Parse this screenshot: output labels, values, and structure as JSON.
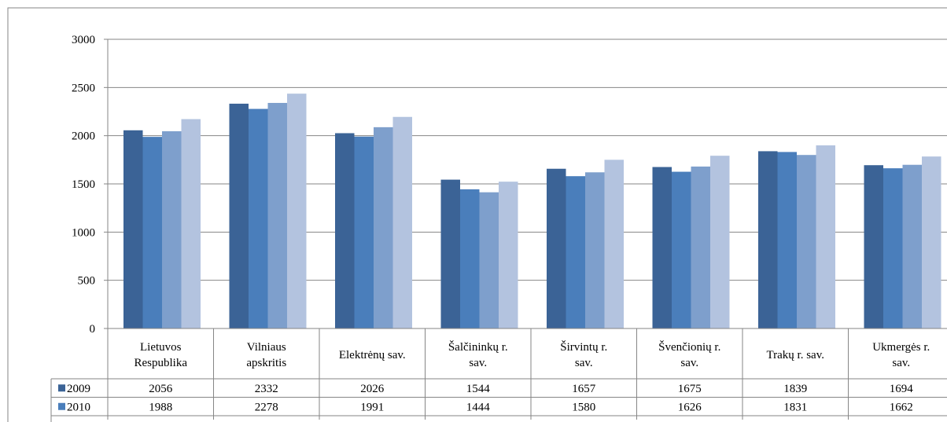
{
  "chart_data": {
    "type": "bar",
    "ylim": [
      0,
      3000
    ],
    "yticks": [
      "0",
      "500",
      "1000",
      "1500",
      "2000",
      "2500",
      "3000"
    ],
    "grid": true,
    "categories": [
      [
        "Lietuvos",
        "Respublika"
      ],
      [
        "Vilniaus",
        "apskritis"
      ],
      [
        "Elektrėnų sav."
      ],
      [
        "Šalčininkų r.",
        "sav."
      ],
      [
        "Širvintų r.",
        "sav."
      ],
      [
        "Švenčionių r.",
        "sav."
      ],
      [
        "Trakų r. sav."
      ],
      [
        "Ukmergės r.",
        "sav."
      ]
    ],
    "series": [
      {
        "name": "2009",
        "color": "#3B6396",
        "values": [
          2056,
          2332,
          2026,
          1544,
          1657,
          1675,
          1839,
          1694
        ]
      },
      {
        "name": "2010",
        "color": "#4A7EBB",
        "values": [
          1988,
          2278,
          1991,
          1444,
          1580,
          1626,
          1831,
          1662
        ]
      },
      {
        "color": "#7E9FCC",
        "values": [
          2046,
          2340,
          2088,
          1413,
          1620,
          1680,
          1800,
          1698
        ]
      },
      {
        "color": "#B3C3DF",
        "values": [
          2172,
          2436,
          2195,
          1523,
          1750,
          1792,
          1900,
          1784
        ]
      }
    ],
    "table_rows": [
      {
        "label": "2009",
        "color": "#3B6396",
        "cells": [
          "2056",
          "2332",
          "2026",
          "1544",
          "1657",
          "1675",
          "1839",
          "1694"
        ]
      },
      {
        "label": "2010",
        "color": "#4A7EBB",
        "cells": [
          "1988",
          "2278",
          "1991",
          "1444",
          "1580",
          "1626",
          "1831",
          "1662"
        ]
      }
    ]
  }
}
